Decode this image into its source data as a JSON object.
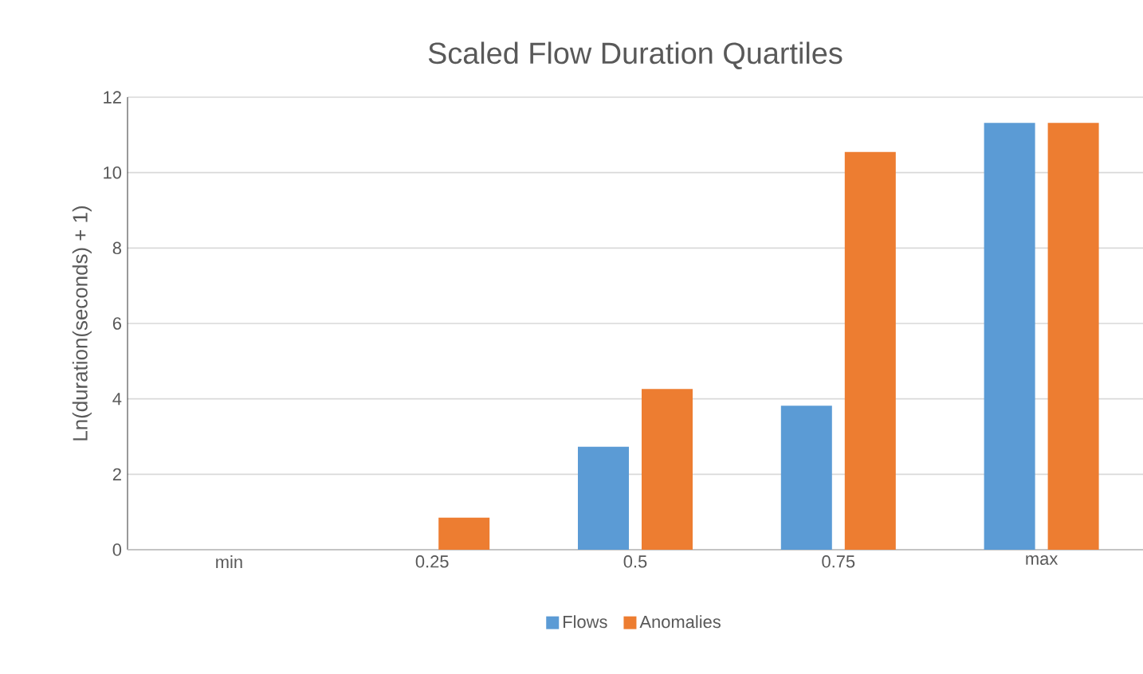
{
  "chart_data": {
    "type": "bar",
    "title": "Scaled Flow Duration Quartiles",
    "ylabel": "Ln(duration(seconds) + 1)",
    "categories": [
      "min",
      "0.25",
      "0.5",
      "0.75",
      "max"
    ],
    "series": [
      {
        "name": "Flows",
        "color": "#5b9bd5",
        "values": [
          0,
          0,
          2.73,
          3.82,
          11.32
        ]
      },
      {
        "name": "Anomalies",
        "color": "#ed7d31",
        "values": [
          0,
          0.85,
          4.26,
          10.55,
          11.32
        ]
      }
    ],
    "ylim": [
      0,
      12
    ],
    "yticks": [
      0,
      2,
      4,
      6,
      8,
      10,
      12
    ],
    "grid": "y",
    "legend": "bottom"
  }
}
